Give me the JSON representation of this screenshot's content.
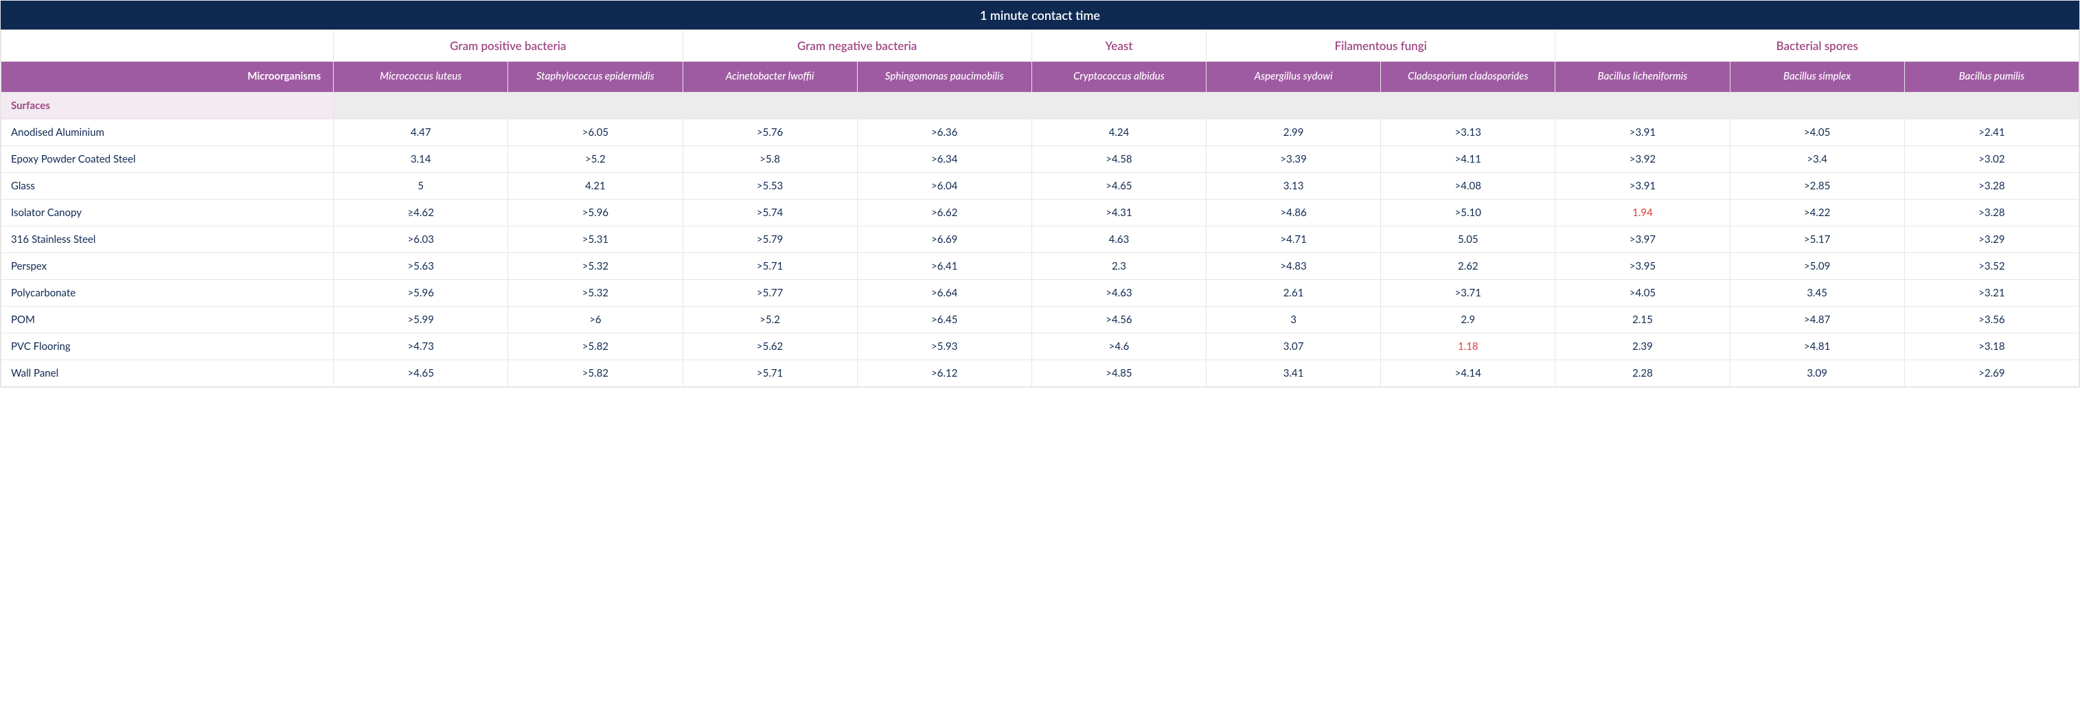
{
  "title": "1 minute contact time",
  "rowHeaderLabel": "Microorganisms",
  "sectionLabel": "Surfaces",
  "colors": {
    "titleBg": "#0f2a52",
    "titleText": "#ffffff",
    "categoryText": "#9e4784",
    "speciesBg": "#9e5ba2",
    "speciesText": "#ffffff",
    "sectionLabelBg": "#f3eaf2",
    "sectionRestBg": "#ececec",
    "dataText": "#0f2a52",
    "highlightText": "#e03c3c",
    "border": "#e6e6e6"
  },
  "categories": [
    {
      "label": "Gram positive bacteria",
      "span": 2
    },
    {
      "label": "Gram negative bacteria",
      "span": 2
    },
    {
      "label": "Yeast",
      "span": 1
    },
    {
      "label": "Filamentous fungi",
      "span": 2
    },
    {
      "label": "Bacterial spores",
      "span": 3
    }
  ],
  "species": [
    "Micrococcus luteus",
    "Staphylococcus epidermidis",
    "Acinetobacter lwoffii",
    "Sphingomonas paucimobilis",
    "Cryptococcus albidus",
    "Aspergillus sydowi",
    "Cladosporium cladosporides",
    "Bacillus licheniformis",
    "Bacillus simplex",
    "Bacillus pumilis"
  ],
  "rows": [
    {
      "surface": "Anodised Aluminium",
      "values": [
        "4.47",
        ">6.05",
        ">5.76",
        ">6.36",
        "4.24",
        "2.99",
        ">3.13",
        ">3.91",
        ">4.05",
        ">2.41"
      ]
    },
    {
      "surface": "Epoxy Powder Coated Steel",
      "values": [
        "3.14",
        ">5.2",
        ">5.8",
        ">6.34",
        ">4.58",
        ">3.39",
        ">4.11",
        ">3.92",
        ">3.4",
        ">3.02"
      ]
    },
    {
      "surface": "Glass",
      "values": [
        "5",
        "4.21",
        ">5.53",
        ">6.04",
        ">4.65",
        "3.13",
        ">4.08",
        ">3.91",
        ">2.85",
        ">3.28"
      ]
    },
    {
      "surface": "Isolator Canopy",
      "values": [
        "≥4.62",
        ">5.96",
        ">5.74",
        ">6.62",
        ">4.31",
        ">4.86",
        ">5.10",
        "1.94",
        ">4.22",
        ">3.28"
      ],
      "highlight": [
        7
      ]
    },
    {
      "surface": "316 Stainless Steel",
      "values": [
        ">6.03",
        ">5.31",
        ">5.79",
        ">6.69",
        "4.63",
        ">4.71",
        "5.05",
        ">3.97",
        ">5.17",
        ">3.29"
      ]
    },
    {
      "surface": "Perspex",
      "values": [
        ">5.63",
        ">5.32",
        ">5.71",
        ">6.41",
        "2.3",
        ">4.83",
        "2.62",
        ">3.95",
        ">5.09",
        ">3.52"
      ]
    },
    {
      "surface": "Polycarbonate",
      "values": [
        ">5.96",
        ">5.32",
        ">5.77",
        ">6.64",
        ">4.63",
        "2.61",
        ">3.71",
        ">4.05",
        "3.45",
        ">3.21"
      ]
    },
    {
      "surface": "POM",
      "values": [
        ">5.99",
        ">6",
        ">5.2",
        ">6.45",
        ">4.56",
        "3",
        "2.9",
        "2.15",
        ">4.87",
        ">3.56"
      ]
    },
    {
      "surface": "PVC Flooring",
      "values": [
        ">4.73",
        ">5.82",
        ">5.62",
        ">5.93",
        ">4.6",
        "3.07",
        "1.18",
        "2.39",
        ">4.81",
        ">3.18"
      ],
      "highlight": [
        6
      ]
    },
    {
      "surface": "Wall Panel",
      "values": [
        ">4.65",
        ">5.82",
        ">5.71",
        ">6.12",
        ">4.85",
        "3.41",
        ">4.14",
        "2.28",
        "3.09",
        ">2.69"
      ]
    }
  ]
}
